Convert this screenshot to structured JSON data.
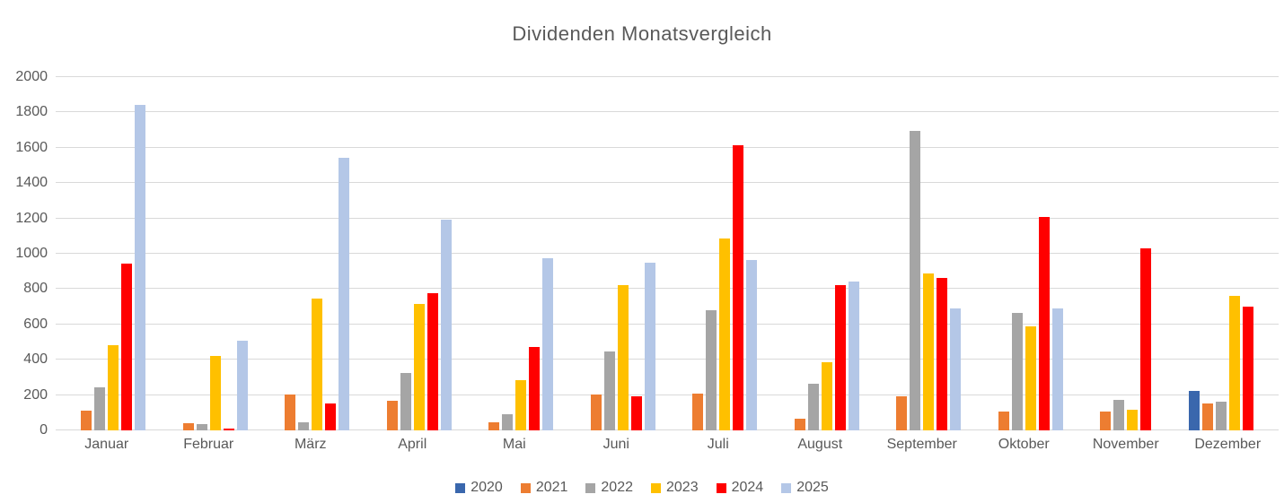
{
  "chart_data": {
    "type": "bar",
    "title": "Dividenden Monatsvergleich",
    "categories": [
      "Januar",
      "Februar",
      "März",
      "April",
      "Mai",
      "Juni",
      "Juli",
      "August",
      "September",
      "Oktober",
      "November",
      "Dezember"
    ],
    "series": [
      {
        "name": "2020",
        "color": "#3A67AD",
        "values": [
          0,
          0,
          0,
          0,
          0,
          0,
          0,
          0,
          0,
          0,
          0,
          225
        ]
      },
      {
        "name": "2021",
        "color": "#ED7D31",
        "values": [
          110,
          40,
          205,
          170,
          45,
          205,
          210,
          65,
          195,
          105,
          105,
          150
        ]
      },
      {
        "name": "2022",
        "color": "#A5A5A5",
        "values": [
          245,
          35,
          45,
          325,
          90,
          445,
          680,
          265,
          1695,
          665,
          175,
          165
        ]
      },
      {
        "name": "2023",
        "color": "#FFC000",
        "values": [
          480,
          420,
          745,
          715,
          285,
          820,
          1085,
          385,
          890,
          590,
          115,
          760
        ]
      },
      {
        "name": "2024",
        "color": "#FF0000",
        "values": [
          945,
          10,
          150,
          775,
          470,
          195,
          1615,
          820,
          865,
          1210,
          1030,
          700
        ]
      },
      {
        "name": "2025",
        "color": "#B4C7E7",
        "values": [
          1845,
          510,
          1545,
          1195,
          975,
          950,
          965,
          845,
          690,
          690,
          0,
          0
        ]
      }
    ],
    "xlabel": "",
    "ylabel": "",
    "ylim": [
      0,
      2000
    ],
    "ytick_step": 200,
    "grid": true,
    "legend_position": "bottom",
    "colors": {
      "gridline": "#d9d9d9",
      "axis_text": "#595959",
      "title_text": "#595959",
      "background": "#ffffff"
    }
  }
}
